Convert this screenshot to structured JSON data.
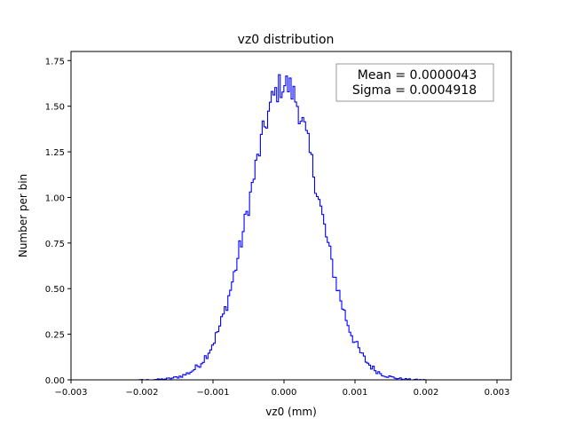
{
  "chart_data": {
    "type": "step",
    "title": "vz0 distribution",
    "xlabel": "vz0 (mm)",
    "ylabel": "Number per bin",
    "xlim": [
      -0.003,
      0.0032
    ],
    "ylim": [
      0,
      1.8
    ],
    "x_ticks": [
      -0.003,
      -0.002,
      -0.001,
      0.0,
      0.001,
      0.002,
      0.003
    ],
    "x_tick_labels": [
      "−0.003",
      "−0.002",
      "−0.001",
      "0.000",
      "0.001",
      "0.002",
      "0.003"
    ],
    "y_ticks": [
      0.0,
      0.25,
      0.5,
      0.75,
      1.0,
      1.25,
      1.5,
      1.75
    ],
    "y_tick_labels": [
      "0.00",
      "0.25",
      "0.50",
      "0.75",
      "1.00",
      "1.25",
      "1.50",
      "1.75"
    ],
    "series": [
      {
        "color": "#0000ff",
        "bin_edges": [
          -0.0027,
          0.0029
        ],
        "n_bins": 220,
        "points": [
          {
            "x": -0.0016,
            "y": 0.01
          },
          {
            "x": -0.0014,
            "y": 0.04
          },
          {
            "x": -0.0012,
            "y": 0.12
          },
          {
            "x": -0.001,
            "y": 0.26
          },
          {
            "x": -0.0008,
            "y": 0.48
          },
          {
            "x": -0.0006,
            "y": 0.78
          },
          {
            "x": -0.0005,
            "y": 0.96
          },
          {
            "x": -0.0004,
            "y": 1.15
          },
          {
            "x": -0.0003,
            "y": 1.38
          },
          {
            "x": -0.0002,
            "y": 1.55
          },
          {
            "x": -0.0001,
            "y": 1.62
          },
          {
            "x": 0.0,
            "y": 1.76
          },
          {
            "x": 0.0001,
            "y": 1.63
          },
          {
            "x": 0.0002,
            "y": 1.55
          },
          {
            "x": 0.0003,
            "y": 1.42
          },
          {
            "x": 0.0004,
            "y": 1.18
          },
          {
            "x": 0.0005,
            "y": 1.0
          },
          {
            "x": 0.0006,
            "y": 0.78
          },
          {
            "x": 0.0008,
            "y": 0.48
          },
          {
            "x": 0.001,
            "y": 0.25
          },
          {
            "x": 0.0012,
            "y": 0.09
          },
          {
            "x": 0.0014,
            "y": 0.03
          },
          {
            "x": 0.0016,
            "y": 0.005
          }
        ]
      }
    ],
    "stats_box": {
      "mean_text": "Mean = 0.0000043",
      "sigma_text": "Sigma = 0.0004918",
      "mean": 4.3e-06,
      "sigma": 0.0004918,
      "placement": "top-right"
    },
    "grid": false
  }
}
